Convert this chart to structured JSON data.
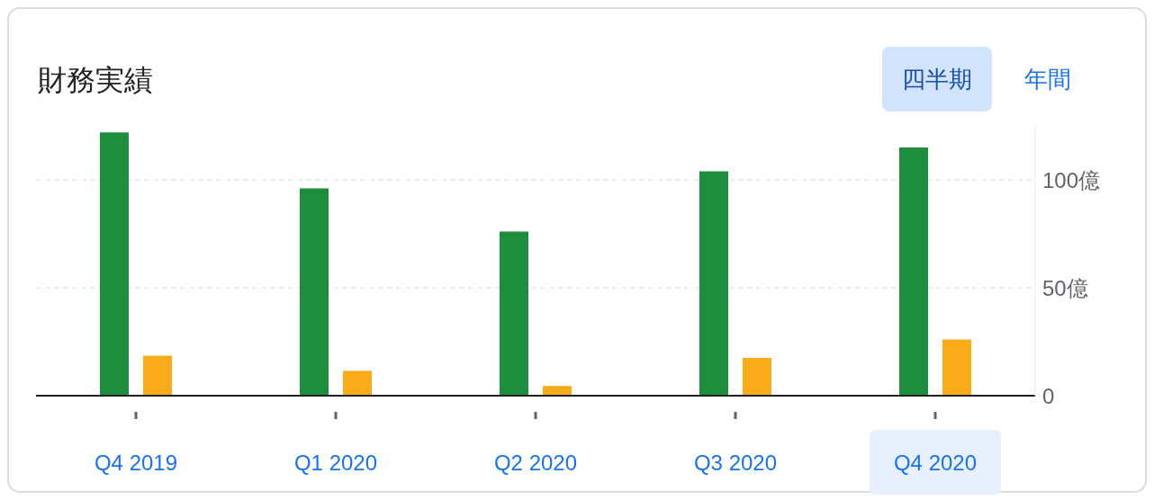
{
  "chart_data": {
    "type": "bar",
    "title": "財務実績",
    "annotations": [
      "四半期",
      "年間"
    ],
    "categories": [
      "Q4 2019",
      "Q1 2020",
      "Q2 2020",
      "Q3 2020",
      "Q4 2020"
    ],
    "series": [
      {
        "color": "#1e8e3e",
        "values": [
          122,
          96,
          76,
          104,
          115
        ]
      },
      {
        "color": "#f9ab1a",
        "values": [
          18.5,
          11.5,
          4.5,
          17.5,
          26
        ]
      }
    ],
    "ylim": [
      0,
      125
    ],
    "yticks": [
      0,
      {
        "value": 50,
        "label": "50億"
      },
      {
        "value": 100,
        "label": "100億"
      }
    ],
    "grid": "y"
  }
}
